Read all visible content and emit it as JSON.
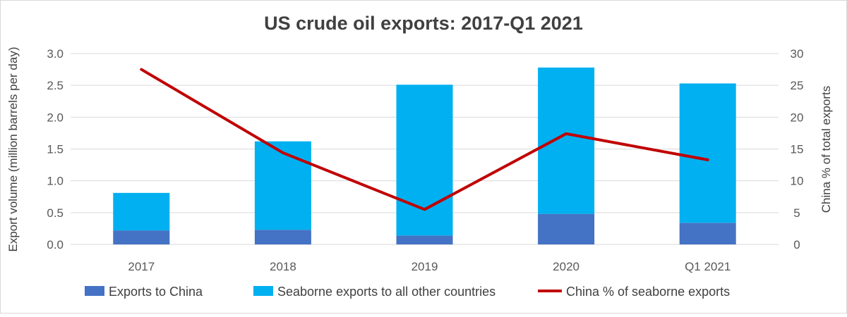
{
  "chart_data": {
    "type": "bar",
    "title": "US crude oil exports: 2017-Q1 2021",
    "categories": [
      "2017",
      "2018",
      "2019",
      "2020",
      "Q1 2021"
    ],
    "stacked": true,
    "series": [
      {
        "name": "Exports to China",
        "axis": "left",
        "color": "#4472c4",
        "values": [
          0.22,
          0.23,
          0.14,
          0.48,
          0.34
        ]
      },
      {
        "name": "Seaborne exports to all other countries",
        "axis": "left",
        "color": "#00b0f0",
        "values": [
          0.59,
          1.39,
          2.37,
          2.3,
          2.19
        ]
      }
    ],
    "line_series": {
      "name": "China % of seaborne exports",
      "axis": "right",
      "type": "line",
      "color": "#c00000",
      "values": [
        27.5,
        14.4,
        5.5,
        17.4,
        13.3
      ]
    },
    "ylabel": "Export volume (million barrels per day)",
    "y2label": "China % of total exports",
    "ylim": [
      0,
      3.0
    ],
    "y2lim": [
      0,
      30
    ],
    "yticks": [
      "0.0",
      "0.5",
      "1.0",
      "1.5",
      "2.0",
      "2.5",
      "3.0"
    ],
    "y2ticks": [
      "0",
      "5",
      "10",
      "15",
      "20",
      "25",
      "30"
    ],
    "grid": true,
    "legend_position": "bottom"
  }
}
